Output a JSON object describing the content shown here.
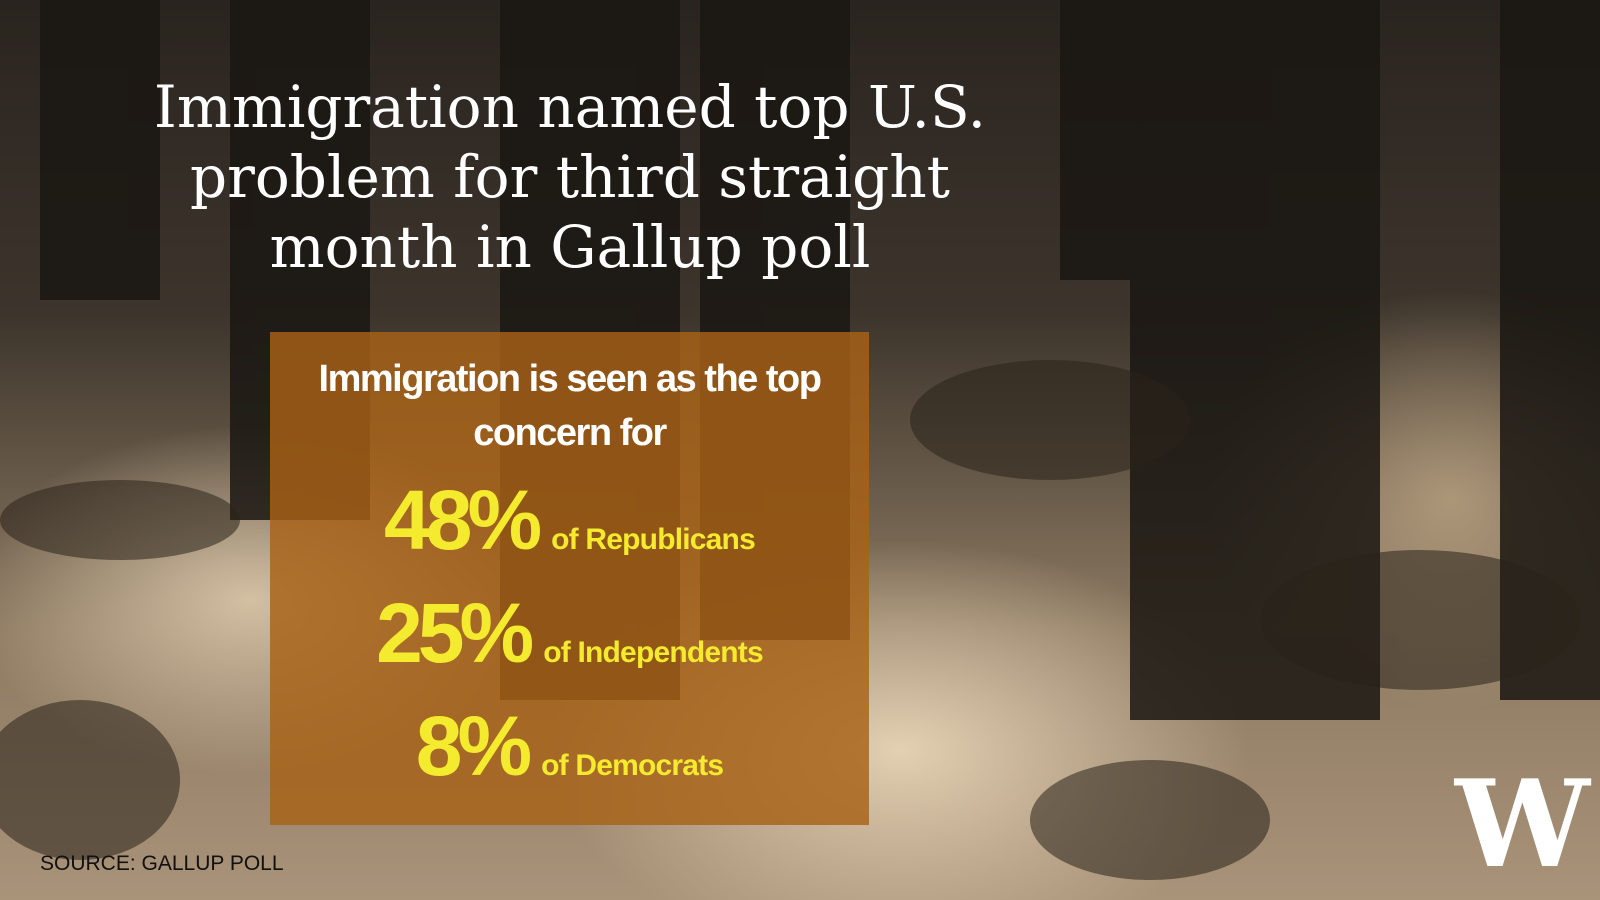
{
  "title": "Immigration named top U.S. problem for third straight month in Gallup poll",
  "panel": {
    "heading": "Immigration is seen as the top concern for",
    "stats": [
      {
        "value": "48%",
        "label": "of Republicans"
      },
      {
        "value": "25%",
        "label": "of Independents"
      },
      {
        "value": "8%",
        "label": "of Democrats"
      }
    ]
  },
  "source": "SOURCE: GALLUP POLL",
  "logo": "W"
}
